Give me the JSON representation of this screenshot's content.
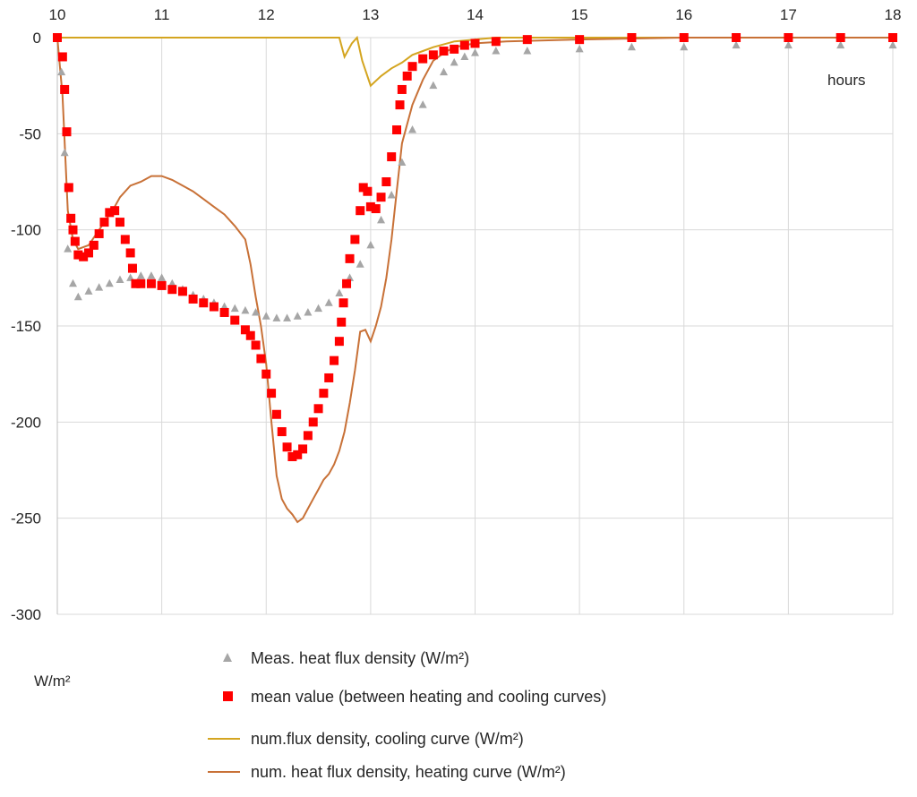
{
  "chart_data": {
    "type": "line",
    "xlabel": "hours",
    "ylabel": "W/m²",
    "xlim": [
      10,
      18
    ],
    "ylim": [
      -300,
      0
    ],
    "x_ticks": [
      "10",
      "11",
      "12",
      "13",
      "14",
      "15",
      "16",
      "17",
      "18"
    ],
    "y_ticks": [
      "0",
      "-50",
      "-100",
      "-150",
      "-200",
      "-250",
      "-300"
    ],
    "x_axis_position": "top",
    "grid": true,
    "legend_position": "bottom",
    "series": [
      {
        "name": "Meas. heat flux density (W/m²)",
        "marker": "triangle",
        "color": "#a6a6a6",
        "points": [
          [
            10.0,
            0
          ],
          [
            10.04,
            -18
          ],
          [
            10.07,
            -60
          ],
          [
            10.1,
            -110
          ],
          [
            10.15,
            -128
          ],
          [
            10.2,
            -135
          ],
          [
            10.3,
            -132
          ],
          [
            10.4,
            -130
          ],
          [
            10.5,
            -128
          ],
          [
            10.6,
            -126
          ],
          [
            10.7,
            -125
          ],
          [
            10.8,
            -124
          ],
          [
            10.9,
            -124
          ],
          [
            11.0,
            -125
          ],
          [
            11.1,
            -128
          ],
          [
            11.2,
            -131
          ],
          [
            11.3,
            -134
          ],
          [
            11.4,
            -136
          ],
          [
            11.5,
            -138
          ],
          [
            11.6,
            -140
          ],
          [
            11.7,
            -141
          ],
          [
            11.8,
            -142
          ],
          [
            11.9,
            -143
          ],
          [
            12.0,
            -145
          ],
          [
            12.1,
            -146
          ],
          [
            12.2,
            -146
          ],
          [
            12.3,
            -145
          ],
          [
            12.4,
            -143
          ],
          [
            12.5,
            -141
          ],
          [
            12.6,
            -138
          ],
          [
            12.7,
            -133
          ],
          [
            12.8,
            -125
          ],
          [
            12.9,
            -118
          ],
          [
            13.0,
            -108
          ],
          [
            13.1,
            -95
          ],
          [
            13.2,
            -82
          ],
          [
            13.3,
            -65
          ],
          [
            13.4,
            -48
          ],
          [
            13.5,
            -35
          ],
          [
            13.6,
            -25
          ],
          [
            13.7,
            -18
          ],
          [
            13.8,
            -13
          ],
          [
            13.9,
            -10
          ],
          [
            14.0,
            -8
          ],
          [
            14.2,
            -7
          ],
          [
            14.5,
            -7
          ],
          [
            15.0,
            -6
          ],
          [
            15.5,
            -5
          ],
          [
            16.0,
            -5
          ],
          [
            16.5,
            -4
          ],
          [
            17.0,
            -4
          ],
          [
            17.5,
            -4
          ],
          [
            18.0,
            -4
          ]
        ]
      },
      {
        "name": "mean value (between heating and cooling curves)",
        "marker": "square",
        "color": "#ff0000",
        "points": [
          [
            10.0,
            0
          ],
          [
            10.05,
            -10
          ],
          [
            10.07,
            -27
          ],
          [
            10.09,
            -49
          ],
          [
            10.11,
            -78
          ],
          [
            10.13,
            -94
          ],
          [
            10.15,
            -100
          ],
          [
            10.17,
            -106
          ],
          [
            10.2,
            -113
          ],
          [
            10.25,
            -114
          ],
          [
            10.3,
            -112
          ],
          [
            10.35,
            -108
          ],
          [
            10.4,
            -102
          ],
          [
            10.45,
            -96
          ],
          [
            10.5,
            -91
          ],
          [
            10.55,
            -90
          ],
          [
            10.6,
            -96
          ],
          [
            10.65,
            -105
          ],
          [
            10.7,
            -112
          ],
          [
            10.72,
            -120
          ],
          [
            10.75,
            -128
          ],
          [
            10.8,
            -128
          ],
          [
            10.9,
            -128
          ],
          [
            11.0,
            -129
          ],
          [
            11.1,
            -131
          ],
          [
            11.2,
            -132
          ],
          [
            11.3,
            -136
          ],
          [
            11.4,
            -138
          ],
          [
            11.5,
            -140
          ],
          [
            11.6,
            -143
          ],
          [
            11.7,
            -147
          ],
          [
            11.8,
            -152
          ],
          [
            11.85,
            -155
          ],
          [
            11.9,
            -160
          ],
          [
            11.95,
            -167
          ],
          [
            12.0,
            -175
          ],
          [
            12.05,
            -185
          ],
          [
            12.1,
            -196
          ],
          [
            12.15,
            -205
          ],
          [
            12.2,
            -213
          ],
          [
            12.25,
            -218
          ],
          [
            12.3,
            -217
          ],
          [
            12.35,
            -214
          ],
          [
            12.4,
            -207
          ],
          [
            12.45,
            -200
          ],
          [
            12.5,
            -193
          ],
          [
            12.55,
            -185
          ],
          [
            12.6,
            -177
          ],
          [
            12.65,
            -168
          ],
          [
            12.7,
            -158
          ],
          [
            12.72,
            -148
          ],
          [
            12.74,
            -138
          ],
          [
            12.77,
            -128
          ],
          [
            12.8,
            -115
          ],
          [
            12.85,
            -105
          ],
          [
            12.9,
            -90
          ],
          [
            12.93,
            -78
          ],
          [
            12.97,
            -80
          ],
          [
            13.0,
            -88
          ],
          [
            13.05,
            -89
          ],
          [
            13.1,
            -83
          ],
          [
            13.15,
            -75
          ],
          [
            13.2,
            -62
          ],
          [
            13.25,
            -48
          ],
          [
            13.28,
            -35
          ],
          [
            13.3,
            -27
          ],
          [
            13.35,
            -20
          ],
          [
            13.4,
            -15
          ],
          [
            13.5,
            -11
          ],
          [
            13.6,
            -9
          ],
          [
            13.7,
            -7
          ],
          [
            13.8,
            -6
          ],
          [
            13.9,
            -4
          ],
          [
            14.0,
            -3
          ],
          [
            14.2,
            -2
          ],
          [
            14.5,
            -1
          ],
          [
            15.0,
            -1
          ],
          [
            15.5,
            0
          ],
          [
            16.0,
            0
          ],
          [
            16.5,
            0
          ],
          [
            17.0,
            0
          ],
          [
            17.5,
            0
          ],
          [
            18.0,
            0
          ]
        ]
      },
      {
        "name": "num.flux density, cooling curve  (W/m²)",
        "marker": "line",
        "color": "#d4a520",
        "points": [
          [
            10.0,
            0
          ],
          [
            10.5,
            0
          ],
          [
            11.0,
            0
          ],
          [
            11.5,
            0
          ],
          [
            12.0,
            0
          ],
          [
            12.5,
            0
          ],
          [
            12.7,
            0
          ],
          [
            12.75,
            -10
          ],
          [
            12.82,
            -3
          ],
          [
            12.87,
            0
          ],
          [
            12.92,
            -12
          ],
          [
            13.0,
            -25
          ],
          [
            13.1,
            -20
          ],
          [
            13.2,
            -16
          ],
          [
            13.3,
            -13
          ],
          [
            13.4,
            -9
          ],
          [
            13.5,
            -7
          ],
          [
            13.6,
            -5
          ],
          [
            13.8,
            -2
          ],
          [
            14.0,
            -1
          ],
          [
            14.2,
            0
          ],
          [
            15.0,
            0
          ],
          [
            16.0,
            0
          ],
          [
            17.0,
            0
          ],
          [
            18.0,
            0
          ]
        ]
      },
      {
        "name": "num. heat flux density, heating curve (W/m²)",
        "marker": "line",
        "color": "#c87137",
        "points": [
          [
            10.0,
            0
          ],
          [
            10.05,
            -30
          ],
          [
            10.1,
            -90
          ],
          [
            10.15,
            -105
          ],
          [
            10.2,
            -110
          ],
          [
            10.3,
            -108
          ],
          [
            10.4,
            -100
          ],
          [
            10.5,
            -92
          ],
          [
            10.55,
            -88
          ],
          [
            10.6,
            -83
          ],
          [
            10.7,
            -77
          ],
          [
            10.8,
            -75
          ],
          [
            10.9,
            -72
          ],
          [
            11.0,
            -72
          ],
          [
            11.1,
            -74
          ],
          [
            11.2,
            -77
          ],
          [
            11.3,
            -80
          ],
          [
            11.4,
            -84
          ],
          [
            11.5,
            -88
          ],
          [
            11.6,
            -92
          ],
          [
            11.7,
            -98
          ],
          [
            11.8,
            -105
          ],
          [
            11.85,
            -118
          ],
          [
            11.9,
            -135
          ],
          [
            11.95,
            -150
          ],
          [
            12.0,
            -170
          ],
          [
            12.05,
            -200
          ],
          [
            12.1,
            -228
          ],
          [
            12.15,
            -240
          ],
          [
            12.2,
            -245
          ],
          [
            12.25,
            -248
          ],
          [
            12.3,
            -252
          ],
          [
            12.35,
            -250
          ],
          [
            12.4,
            -245
          ],
          [
            12.45,
            -240
          ],
          [
            12.5,
            -235
          ],
          [
            12.55,
            -230
          ],
          [
            12.6,
            -227
          ],
          [
            12.65,
            -222
          ],
          [
            12.7,
            -215
          ],
          [
            12.75,
            -205
          ],
          [
            12.8,
            -190
          ],
          [
            12.85,
            -173
          ],
          [
            12.9,
            -153
          ],
          [
            12.95,
            -152
          ],
          [
            13.0,
            -158
          ],
          [
            13.05,
            -150
          ],
          [
            13.1,
            -140
          ],
          [
            13.15,
            -125
          ],
          [
            13.2,
            -105
          ],
          [
            13.25,
            -80
          ],
          [
            13.3,
            -55
          ],
          [
            13.4,
            -35
          ],
          [
            13.5,
            -22
          ],
          [
            13.6,
            -12
          ],
          [
            13.7,
            -8
          ],
          [
            13.8,
            -5
          ],
          [
            14.0,
            -3
          ],
          [
            14.3,
            -2
          ],
          [
            15.0,
            -1
          ],
          [
            16.0,
            0
          ],
          [
            17.0,
            0
          ],
          [
            18.0,
            0
          ]
        ]
      }
    ]
  }
}
